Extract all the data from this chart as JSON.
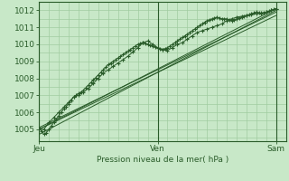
{
  "title": "Pression niveau de la mer( hPa )",
  "x_ticks_labels": [
    "Jeu",
    "Ven",
    "Sam"
  ],
  "x_ticks_pos": [
    0,
    24,
    48
  ],
  "ylim": [
    1004.3,
    1012.5
  ],
  "yticks": [
    1005,
    1006,
    1007,
    1008,
    1009,
    1010,
    1011,
    1012
  ],
  "xlim": [
    0,
    50
  ],
  "bg_color": "#c8e8c8",
  "grid_color": "#a0cca0",
  "line_color": "#2a5c2a",
  "border_color": "#2a5c2a",
  "series1_x": [
    0,
    0.5,
    1,
    1.5,
    2,
    2.5,
    3,
    3.5,
    4,
    4.5,
    5,
    5.5,
    6,
    6.5,
    7,
    7.5,
    8,
    8.5,
    9,
    9.5,
    10,
    10.5,
    11,
    11.5,
    12,
    12.5,
    13,
    13.5,
    14,
    14.5,
    15,
    15.5,
    16,
    16.5,
    17,
    17.5,
    18,
    18.5,
    19,
    19.5,
    20,
    20.5,
    21,
    21.5,
    22,
    22.5,
    23,
    23.5,
    24,
    24.5,
    25,
    25.5,
    26,
    26.5,
    27,
    27.5,
    28,
    28.5,
    29,
    29.5,
    30,
    30.5,
    31,
    31.5,
    32,
    32.5,
    33,
    33.5,
    34,
    34.5,
    35,
    35.5,
    36,
    36.5,
    37,
    37.5,
    38,
    38.5,
    39,
    39.5,
    40,
    40.5,
    41,
    41.5,
    42,
    42.5,
    43,
    43.5,
    44,
    44.5,
    45,
    45.5,
    46,
    46.5,
    47,
    47.5,
    48
  ],
  "series1_y": [
    1005.1,
    1004.9,
    1004.7,
    1004.8,
    1005.0,
    1005.2,
    1005.4,
    1005.6,
    1005.8,
    1006.0,
    1006.2,
    1006.35,
    1006.5,
    1006.7,
    1006.9,
    1007.0,
    1007.1,
    1007.2,
    1007.3,
    1007.45,
    1007.6,
    1007.75,
    1007.9,
    1008.05,
    1008.2,
    1008.35,
    1008.5,
    1008.65,
    1008.8,
    1008.9,
    1009.0,
    1009.1,
    1009.2,
    1009.3,
    1009.4,
    1009.5,
    1009.6,
    1009.7,
    1009.8,
    1009.9,
    1010.0,
    1010.05,
    1010.1,
    1010.05,
    1010.0,
    1009.95,
    1009.9,
    1009.85,
    1009.8,
    1009.75,
    1009.7,
    1009.75,
    1009.8,
    1009.9,
    1010.0,
    1010.1,
    1010.2,
    1010.3,
    1010.4,
    1010.5,
    1010.6,
    1010.7,
    1010.8,
    1010.9,
    1011.0,
    1011.1,
    1011.2,
    1011.3,
    1011.4,
    1011.45,
    1011.5,
    1011.55,
    1011.6,
    1011.55,
    1011.5,
    1011.5,
    1011.5,
    1011.45,
    1011.4,
    1011.45,
    1011.5,
    1011.55,
    1011.6,
    1011.65,
    1011.7,
    1011.75,
    1011.8,
    1011.85,
    1011.9,
    1011.85,
    1011.8,
    1011.85,
    1011.9,
    1011.95,
    1012.0,
    1012.05,
    1012.1
  ],
  "series2_x": [
    0,
    1,
    2,
    3,
    4,
    5,
    6,
    7,
    8,
    9,
    10,
    11,
    12,
    13,
    14,
    15,
    16,
    17,
    18,
    19,
    20,
    21,
    22,
    23,
    24,
    25,
    26,
    27,
    28,
    29,
    30,
    31,
    32,
    33,
    34,
    35,
    36,
    37,
    38,
    39,
    40,
    41,
    42,
    43,
    44,
    45,
    46,
    47,
    48
  ],
  "series2_y": [
    1005.0,
    1005.0,
    1005.4,
    1005.7,
    1006.0,
    1006.3,
    1006.6,
    1006.9,
    1007.0,
    1007.2,
    1007.4,
    1007.7,
    1008.0,
    1008.3,
    1008.5,
    1008.7,
    1008.9,
    1009.1,
    1009.3,
    1009.55,
    1009.8,
    1010.1,
    1010.2,
    1010.0,
    1009.8,
    1009.7,
    1009.65,
    1009.8,
    1010.0,
    1010.1,
    1010.3,
    1010.5,
    1010.7,
    1010.8,
    1010.9,
    1011.0,
    1011.1,
    1011.2,
    1011.4,
    1011.5,
    1011.6,
    1011.65,
    1011.7,
    1011.75,
    1011.8,
    1011.85,
    1011.9,
    1012.0,
    1012.1
  ],
  "trend1_x": [
    0,
    48
  ],
  "trend1_y": [
    1005.0,
    1011.7
  ],
  "trend2_x": [
    0,
    48
  ],
  "trend2_y": [
    1004.7,
    1012.0
  ],
  "trend3_x": [
    0,
    48
  ],
  "trend3_y": [
    1005.1,
    1011.9
  ],
  "trend4_x": [
    0,
    48
  ],
  "trend4_y": [
    1005.0,
    1012.1
  ]
}
